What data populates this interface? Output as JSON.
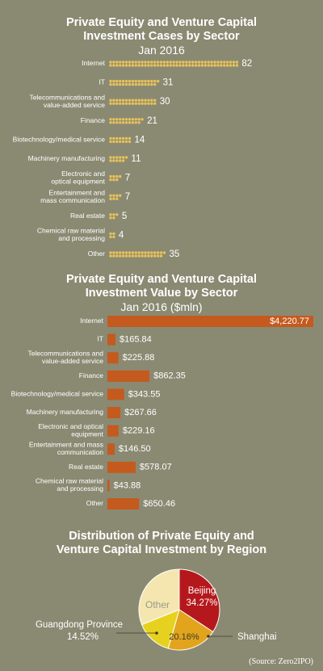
{
  "colors": {
    "background": "#8a8a73",
    "dot": "#e8c25a",
    "bar": "#c45a1e",
    "beijing": "#b5181c",
    "shanghai": "#e2a41c",
    "guangdong": "#e6d21e",
    "other": "#f5e6b0"
  },
  "chart_data": [
    {
      "type": "scatter",
      "title_line1": "Private Equity and Venture Capital",
      "title_line2": "Investment Cases by Sector",
      "subtitle": "Jan 2016",
      "categories": [
        [
          "Internet"
        ],
        [
          "IT"
        ],
        [
          "Telecommunications and",
          "value-added service"
        ],
        [
          "Finance"
        ],
        [
          "Biotechnology/medical service"
        ],
        [
          "Machinery manufacturing"
        ],
        [
          "Electronic and",
          "optical equipment"
        ],
        [
          "Entertainment and",
          "mass communication"
        ],
        [
          "Real estate"
        ],
        [
          "Chemical raw material",
          "and processing"
        ],
        [
          "Other"
        ]
      ],
      "values": [
        82,
        31,
        30,
        21,
        14,
        11,
        7,
        7,
        5,
        4,
        35
      ],
      "value_labels": [
        "82",
        "31",
        "30",
        "21",
        "14",
        "11",
        "7",
        "7",
        "5",
        "4",
        "35"
      ]
    },
    {
      "type": "bar",
      "title_line1": "Private Equity and Venture Capital",
      "title_line2": "Investment Value by Sector",
      "subtitle": "Jan 2016 ($mln)",
      "categories": [
        [
          "Internet"
        ],
        [
          "IT"
        ],
        [
          "Telecommunications and",
          "value-added service"
        ],
        [
          "Finance"
        ],
        [
          "Biotechnology/medical service"
        ],
        [
          "Machinery manufacturing"
        ],
        [
          "Electronic and optical",
          "equipment"
        ],
        [
          "Entertainment and mass",
          "communication"
        ],
        [
          "Real estate"
        ],
        [
          "Chemical raw material",
          "and processing"
        ],
        [
          "Other"
        ]
      ],
      "values": [
        4220.77,
        165.84,
        225.88,
        862.35,
        343.55,
        267.66,
        229.16,
        146.5,
        578.07,
        43.88,
        650.46
      ],
      "value_labels": [
        "$4,220.77",
        "$165.84",
        "$225.88",
        "$862.35",
        "$343.55",
        "$267.66",
        "$229.16",
        "$146.50",
        "$578.07",
        "$43.88",
        "$650.46"
      ]
    },
    {
      "type": "pie",
      "title_line1": "Distribution of Private Equity and",
      "title_line2": "Venture Capital Investment by Region",
      "slices": [
        {
          "name": "Beijing",
          "value": 34.27,
          "label": "34.27%"
        },
        {
          "name": "Shanghai",
          "value": 20.16,
          "label": "20.16%"
        },
        {
          "name": "Guangdong Province",
          "value": 14.52,
          "label": "14.52%"
        },
        {
          "name": "Other",
          "value": 31.05,
          "label": ""
        }
      ]
    }
  ],
  "source": "(Source: Zero2IPO)"
}
